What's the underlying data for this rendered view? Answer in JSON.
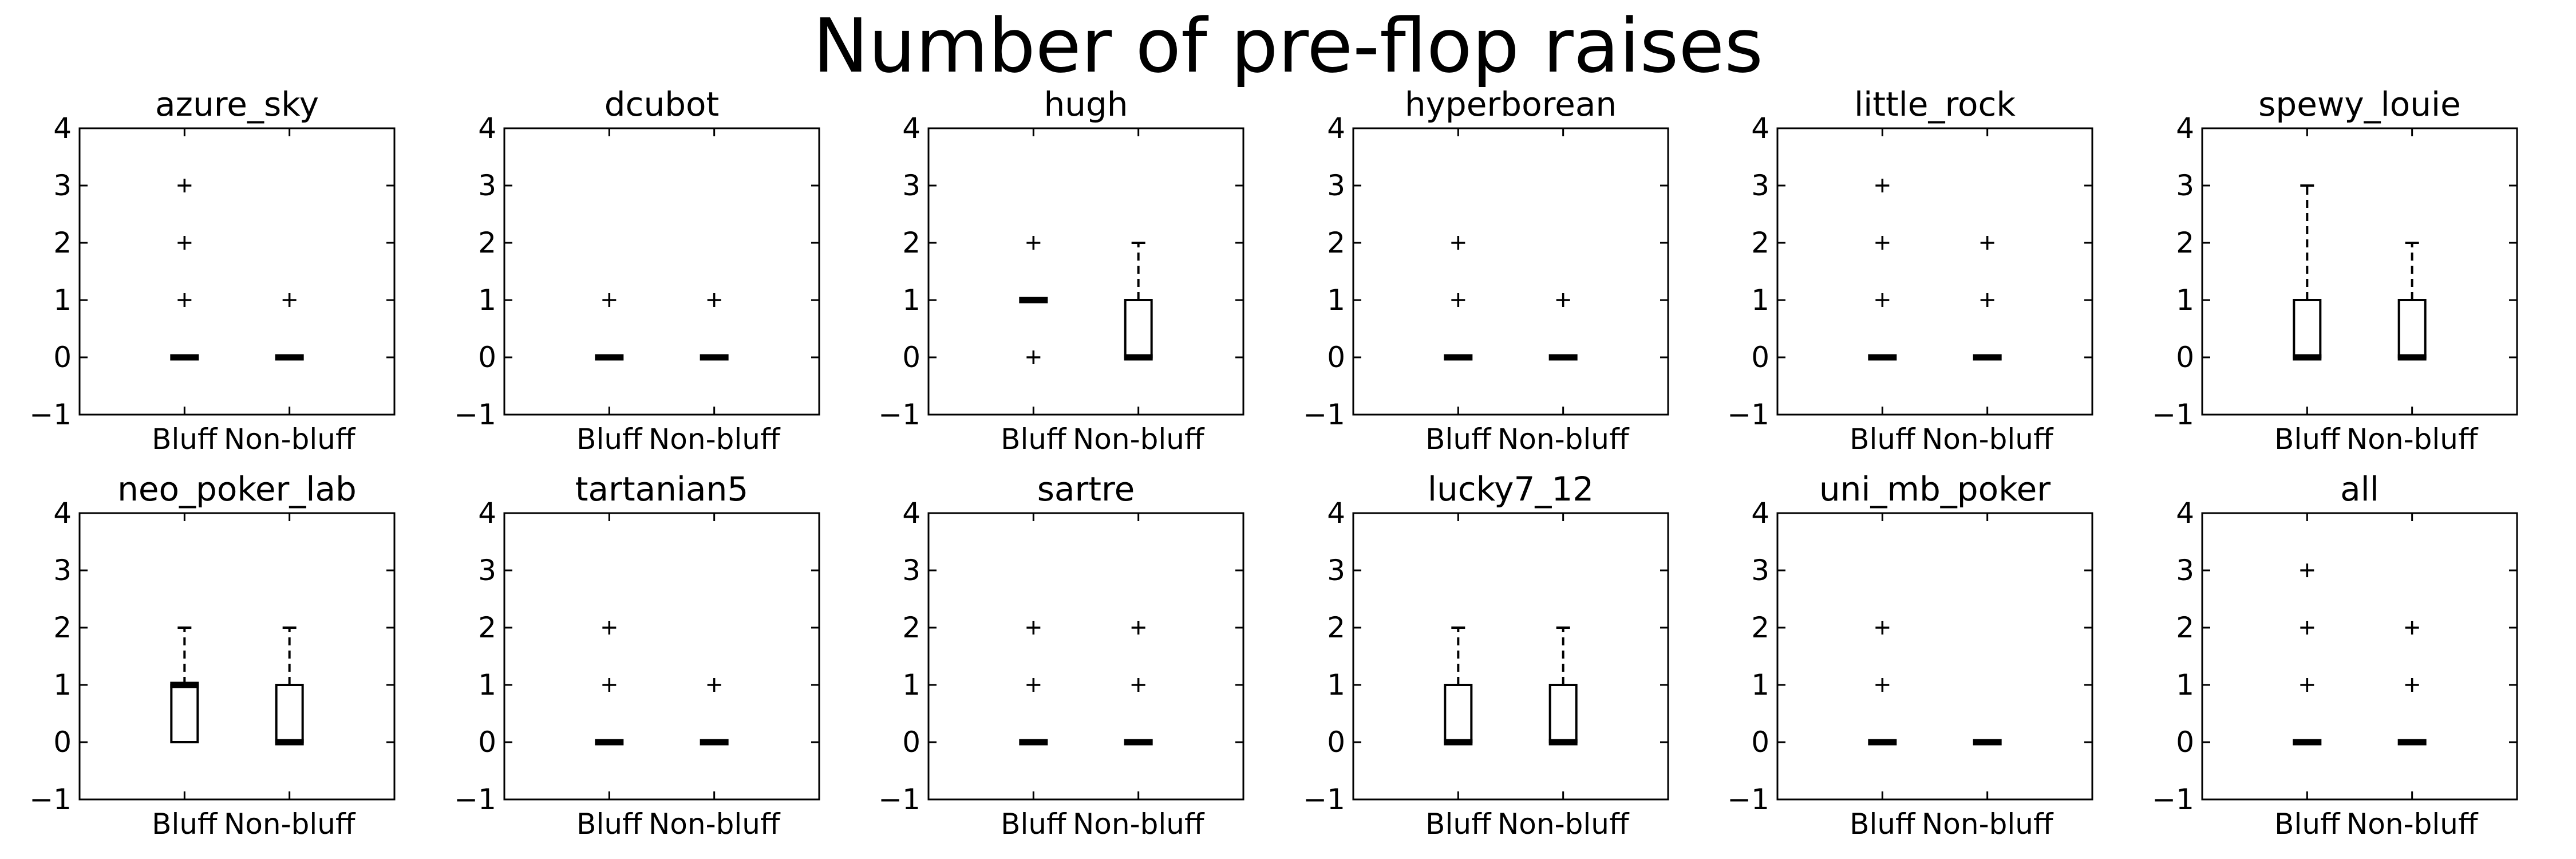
{
  "chart_data": {
    "type": "box",
    "title": "Number of pre-flop raises",
    "categories": [
      "Bluff",
      "Non-bluff"
    ],
    "ylim": [
      -1,
      4
    ],
    "yticks": [
      -1,
      0,
      1,
      2,
      3,
      4
    ],
    "ytick_labels": [
      "−1",
      "0",
      "1",
      "2",
      "3",
      "4"
    ],
    "grid": false,
    "panels": [
      {
        "title": "azure_sky",
        "boxes": [
          {
            "q1": 0,
            "median": 0,
            "q3": 0,
            "whisker_low": 0,
            "whisker_high": 0,
            "fliers": [
              1,
              2,
              3
            ]
          },
          {
            "q1": 0,
            "median": 0,
            "q3": 0,
            "whisker_low": 0,
            "whisker_high": 0,
            "fliers": [
              1
            ]
          }
        ]
      },
      {
        "title": "dcubot",
        "boxes": [
          {
            "q1": 0,
            "median": 0,
            "q3": 0,
            "whisker_low": 0,
            "whisker_high": 0,
            "fliers": [
              1
            ]
          },
          {
            "q1": 0,
            "median": 0,
            "q3": 0,
            "whisker_low": 0,
            "whisker_high": 0,
            "fliers": [
              1
            ]
          }
        ]
      },
      {
        "title": "hugh",
        "boxes": [
          {
            "q1": 1,
            "median": 1,
            "q3": 1,
            "whisker_low": 1,
            "whisker_high": 1,
            "fliers": [
              0,
              2
            ]
          },
          {
            "q1": 0,
            "median": 0,
            "q3": 1,
            "whisker_low": 0,
            "whisker_high": 2,
            "fliers": []
          }
        ]
      },
      {
        "title": "hyperborean",
        "boxes": [
          {
            "q1": 0,
            "median": 0,
            "q3": 0,
            "whisker_low": 0,
            "whisker_high": 0,
            "fliers": [
              1,
              2
            ]
          },
          {
            "q1": 0,
            "median": 0,
            "q3": 0,
            "whisker_low": 0,
            "whisker_high": 0,
            "fliers": [
              1
            ]
          }
        ]
      },
      {
        "title": "little_rock",
        "boxes": [
          {
            "q1": 0,
            "median": 0,
            "q3": 0,
            "whisker_low": 0,
            "whisker_high": 0,
            "fliers": [
              1,
              2,
              3
            ]
          },
          {
            "q1": 0,
            "median": 0,
            "q3": 0,
            "whisker_low": 0,
            "whisker_high": 0,
            "fliers": [
              1,
              2
            ]
          }
        ]
      },
      {
        "title": "spewy_louie",
        "boxes": [
          {
            "q1": 0,
            "median": 0,
            "q3": 1,
            "whisker_low": 0,
            "whisker_high": 3,
            "fliers": []
          },
          {
            "q1": 0,
            "median": 0,
            "q3": 1,
            "whisker_low": 0,
            "whisker_high": 2,
            "fliers": []
          }
        ]
      },
      {
        "title": "neo_poker_lab",
        "boxes": [
          {
            "q1": 0,
            "median": 1,
            "q3": 1,
            "whisker_low": 0,
            "whisker_high": 2,
            "fliers": []
          },
          {
            "q1": 0,
            "median": 0,
            "q3": 1,
            "whisker_low": 0,
            "whisker_high": 2,
            "fliers": []
          }
        ]
      },
      {
        "title": "tartanian5",
        "boxes": [
          {
            "q1": 0,
            "median": 0,
            "q3": 0,
            "whisker_low": 0,
            "whisker_high": 0,
            "fliers": [
              1,
              2
            ]
          },
          {
            "q1": 0,
            "median": 0,
            "q3": 0,
            "whisker_low": 0,
            "whisker_high": 0,
            "fliers": [
              1
            ]
          }
        ]
      },
      {
        "title": "sartre",
        "boxes": [
          {
            "q1": 0,
            "median": 0,
            "q3": 0,
            "whisker_low": 0,
            "whisker_high": 0,
            "fliers": [
              1,
              2
            ]
          },
          {
            "q1": 0,
            "median": 0,
            "q3": 0,
            "whisker_low": 0,
            "whisker_high": 0,
            "fliers": [
              1,
              2
            ]
          }
        ]
      },
      {
        "title": "lucky7_12",
        "boxes": [
          {
            "q1": 0,
            "median": 0,
            "q3": 1,
            "whisker_low": 0,
            "whisker_high": 2,
            "fliers": []
          },
          {
            "q1": 0,
            "median": 0,
            "q3": 1,
            "whisker_low": 0,
            "whisker_high": 2,
            "fliers": []
          }
        ]
      },
      {
        "title": "uni_mb_poker",
        "boxes": [
          {
            "q1": 0,
            "median": 0,
            "q3": 0,
            "whisker_low": 0,
            "whisker_high": 0,
            "fliers": [
              1,
              2
            ]
          },
          {
            "q1": 0,
            "median": 0,
            "q3": 0,
            "whisker_low": 0,
            "whisker_high": 0,
            "fliers": []
          }
        ]
      },
      {
        "title": "all",
        "boxes": [
          {
            "q1": 0,
            "median": 0,
            "q3": 0,
            "whisker_low": 0,
            "whisker_high": 0,
            "fliers": [
              1,
              2,
              3
            ]
          },
          {
            "q1": 0,
            "median": 0,
            "q3": 0,
            "whisker_low": 0,
            "whisker_high": 0,
            "fliers": [
              1,
              2
            ]
          }
        ]
      }
    ]
  }
}
